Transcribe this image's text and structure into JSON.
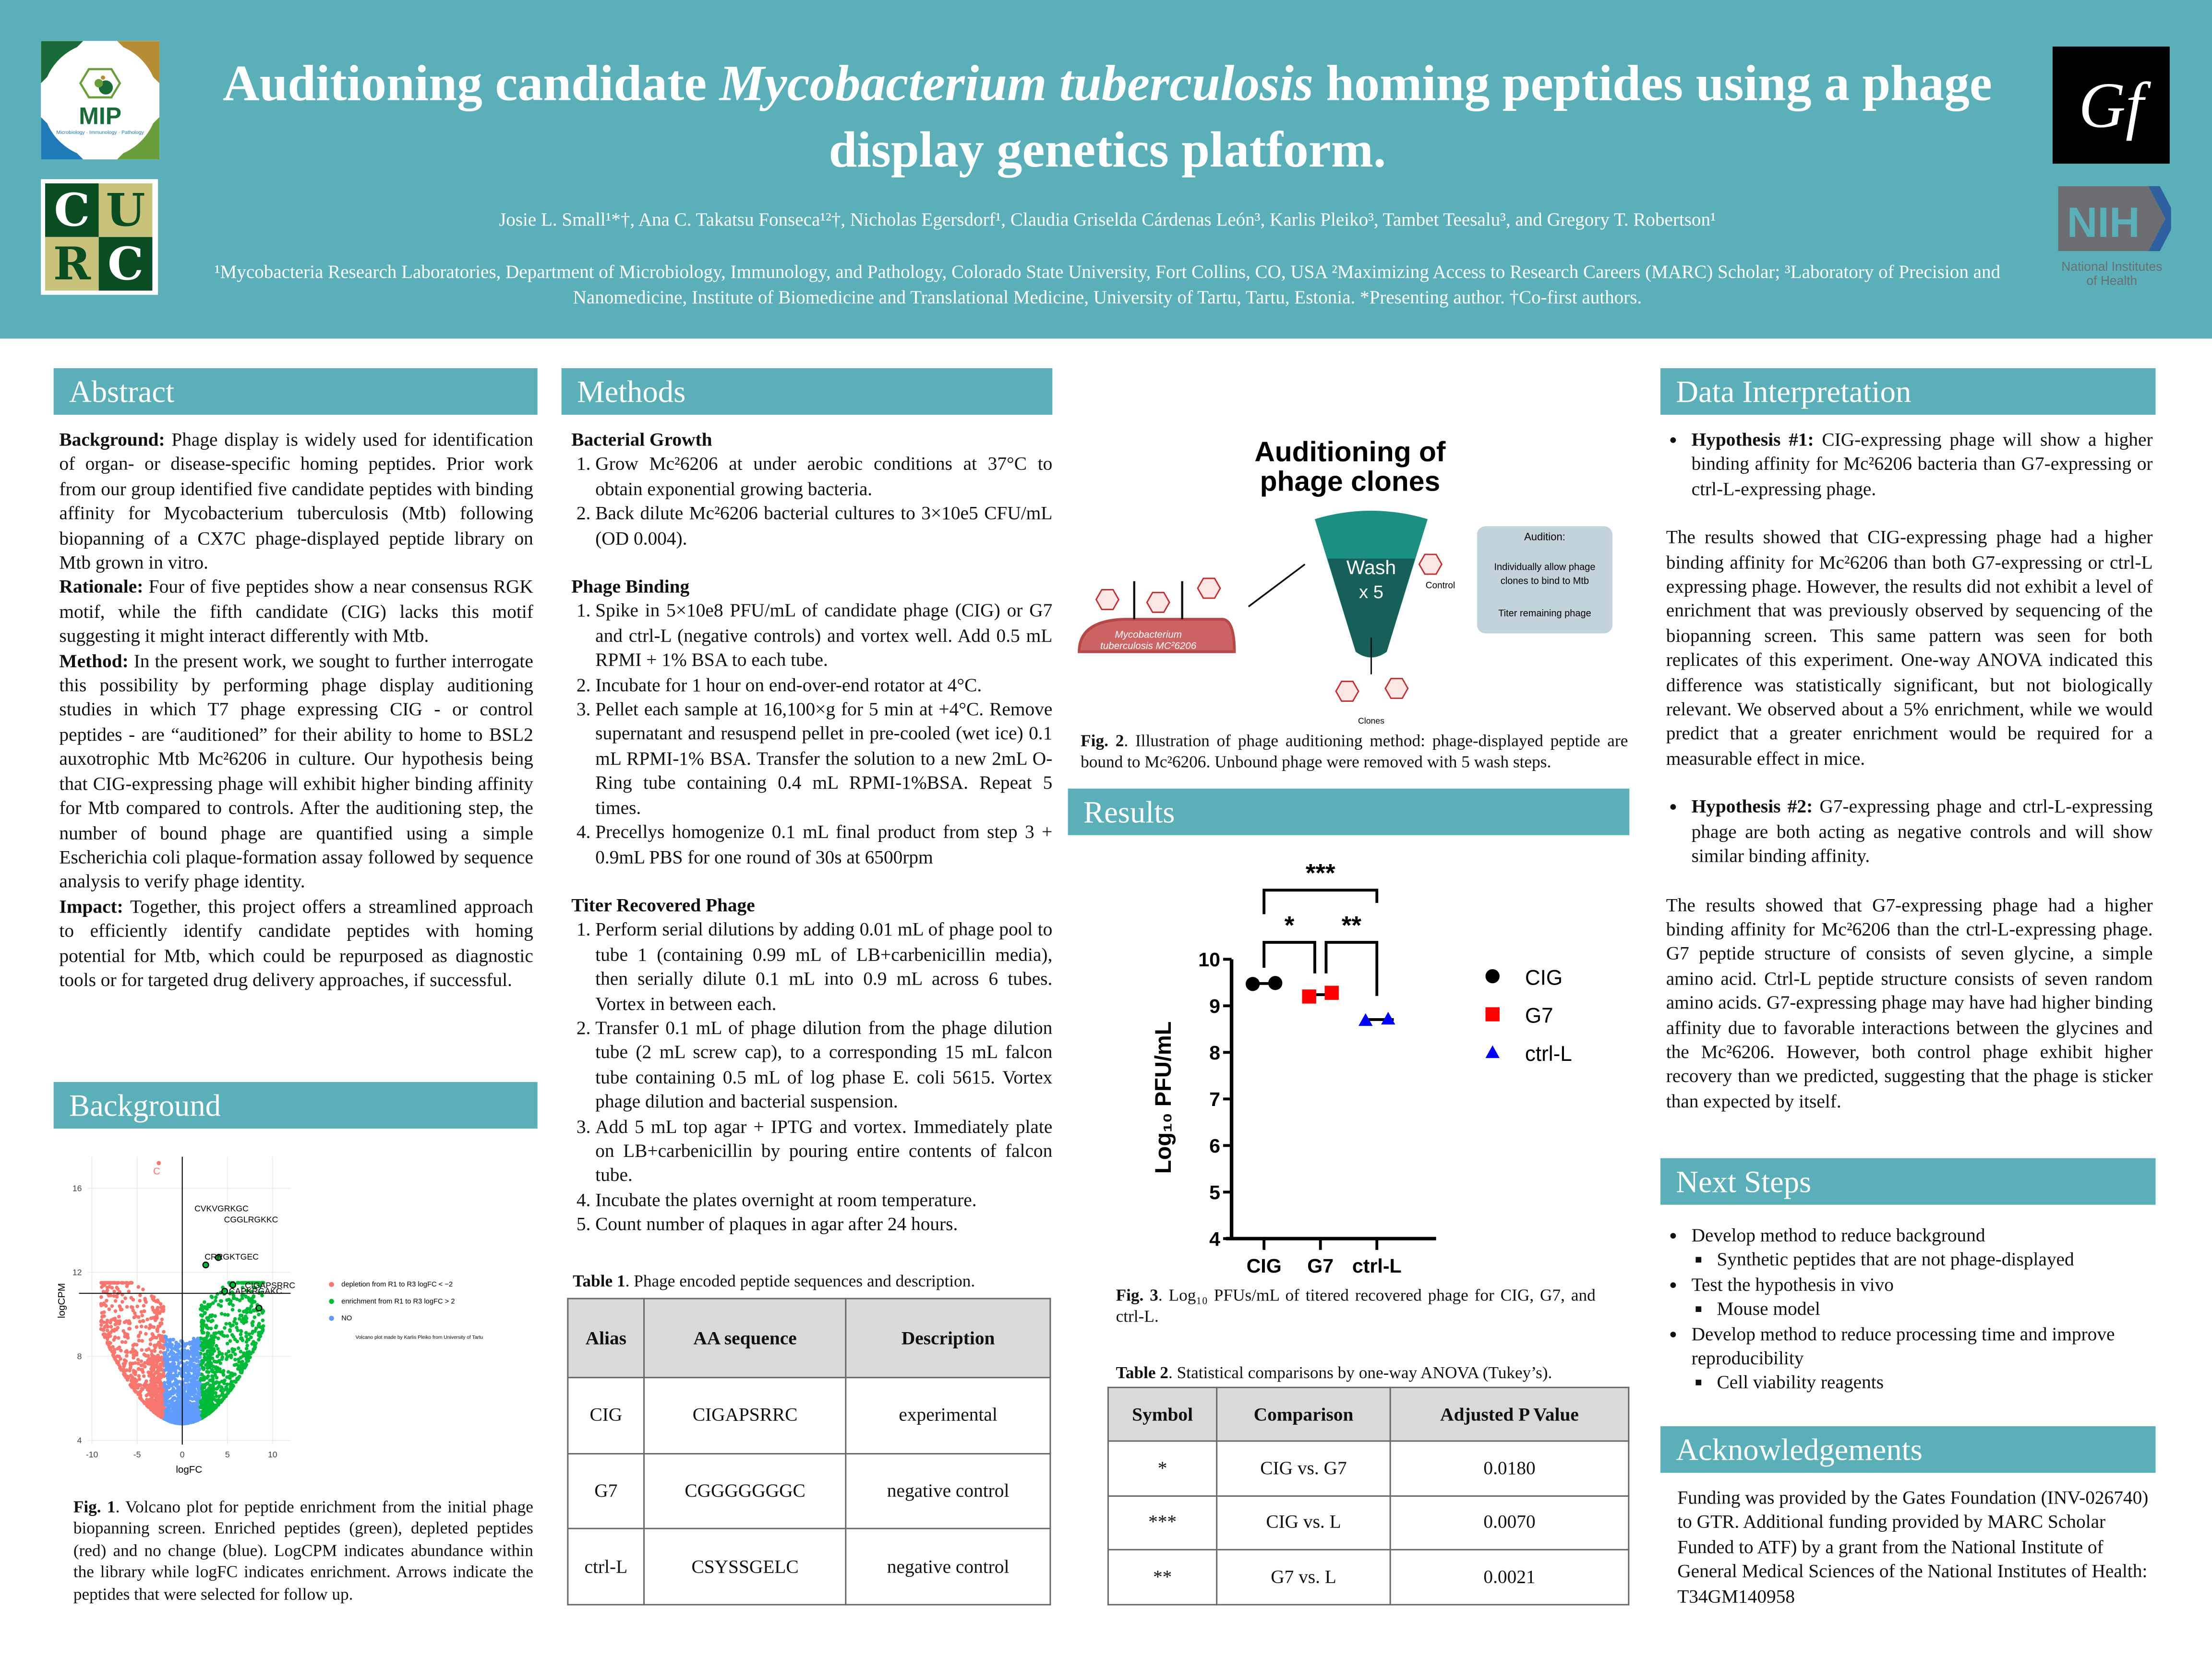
{
  "header": {
    "title_part1": "Auditioning candidate ",
    "title_italic": "Mycobacterium tuberculosis",
    "title_part2": " homing peptides using a phage display genetics platform.",
    "authors": "Josie L. Small¹*†, Ana C. Takatsu Fonseca¹²†, Nicholas Egersdorf¹, Claudia Griselda Cárdenas León³, Karlis Pleiko³, Tambet Teesalu³, and Gregory T. Robertson¹",
    "affiliations": "¹Mycobacteria Research Laboratories, Department of Microbiology, Immunology, and Pathology, Colorado State University, Fort Collins, CO, USA ²Maximizing Access to Research Careers (MARC) Scholar; ³Laboratory of Precision and Nanomedicine, Institute of Biomedicine and Translational Medicine, University of Tartu, Tartu, Estonia. *Presenting author. †Co-first authors.",
    "logos": {
      "mip": {
        "text": "MIP",
        "sub": "Microbiology · Immunology · Pathology"
      },
      "curc": [
        "C",
        "U",
        "R",
        "C"
      ],
      "gf": "Gf",
      "nih": {
        "text": "NIH",
        "sub1": "National Institutes",
        "sub2": "of Health"
      }
    }
  },
  "colors": {
    "header": "#5aafb8",
    "cig": "#000000",
    "g7": "#ff0000",
    "ctrl": "#0000ff",
    "depletion": "#f8766d",
    "enrichment": "#00ba38",
    "no": "#619cff"
  },
  "abstract": {
    "heading": "Abstract",
    "paragraphs": [
      {
        "lead": "Background:",
        "text": " Phage display is widely used for identification of organ- or disease-specific homing peptides. Prior work from our group identified five candidate peptides with binding affinity for Mycobacterium tuberculosis (Mtb) following biopanning of a CX7C phage-displayed peptide library on Mtb grown in vitro."
      },
      {
        "lead": "Rationale:",
        "text": " Four of five peptides show a near consensus RGK motif, while the fifth candidate (CIG) lacks this motif suggesting it might interact differently with Mtb."
      },
      {
        "lead": "Method:",
        "text": " In the present work, we sought to further interrogate this possibility by performing phage display auditioning studies in which T7 phage expressing CIG - or control peptides - are “auditioned” for their ability to home to BSL2 auxotrophic Mtb Mc²6206 in culture. Our hypothesis being that CIG-expressing phage will exhibit higher binding affinity for Mtb compared to controls. After the auditioning step, the number of bound phage are quantified using a simple Escherichia coli plaque-formation assay followed by sequence analysis to verify phage identity."
      },
      {
        "lead": "Impact:",
        "text": " Together, this project offers a streamlined approach to efficiently identify candidate peptides with homing potential for Mtb, which could be repurposed as diagnostic tools or for targeted drug delivery approaches, if successful."
      }
    ]
  },
  "background": {
    "heading": "Background",
    "caption_label": "Fig. 1",
    "caption": ". Volcano plot for peptide enrichment from the initial phage biopanning screen. Enriched peptides (green), depleted peptides (red) and no change (blue). LogCPM indicates abundance within the library while logFC indicates enrichment. Arrows indicate the peptides that were selected for follow up."
  },
  "chart_data": [
    {
      "type": "scatter",
      "xlabel": "logFC",
      "ylabel": "logCPM",
      "xticks": [
        -10,
        -5,
        0,
        5,
        10
      ],
      "yticks": [
        4,
        8,
        12,
        16
      ],
      "xlim": [
        -10.5,
        12
      ],
      "ylim": [
        3.8,
        17.5
      ],
      "grid": true,
      "legend_position": "right",
      "legend": [
        "depletion from R1 to R3 logFC < −2",
        "enrichment from R1 to R3 logFC > 2",
        "NO"
      ],
      "thresholds": {
        "vertical_x": 0,
        "horizontal_y": 11.0
      },
      "highlighted": [
        {
          "label": "CVKVGRKGC",
          "x": 2.6,
          "y": 12.35
        },
        {
          "label": "CGGLRGKKC",
          "x": 4.0,
          "y": 12.7
        },
        {
          "label": "CRRGKTGEC",
          "x": 5.6,
          "y": 11.4
        },
        {
          "label": "CAPKRGAKC",
          "x": 4.7,
          "y": 11.1
        },
        {
          "label": "CIGAPSRRC",
          "x": 8.5,
          "y": 10.3
        }
      ],
      "top_point": {
        "label": "C",
        "x": -2.6,
        "y": 17.2
      },
      "note": "Volcano plot made by Karlis Pleiko from University of Tartu"
    },
    {
      "type": "scatter",
      "ylabel": "Log₁₀ PFU/mL",
      "categories": [
        "CIG",
        "G7",
        "ctrl-L"
      ],
      "ylim": [
        4,
        10
      ],
      "yticks": [
        4,
        5,
        6,
        7,
        8,
        9,
        10
      ],
      "legend_position": "right",
      "series": [
        {
          "name": "CIG",
          "values": [
            9.47,
            9.49
          ],
          "marker": "circle",
          "color": "#000000"
        },
        {
          "name": "G7",
          "values": [
            9.2,
            9.28
          ],
          "marker": "square",
          "color": "#ff0000"
        },
        {
          "name": "ctrl-L",
          "values": [
            8.69,
            8.72
          ],
          "marker": "triangle",
          "color": "#0000ff"
        }
      ],
      "significance": [
        {
          "pair": [
            "CIG",
            "G7"
          ],
          "label": "*"
        },
        {
          "pair": [
            "G7",
            "ctrl-L"
          ],
          "label": "**"
        },
        {
          "pair": [
            "CIG",
            "ctrl-L"
          ],
          "label": "***"
        }
      ]
    }
  ],
  "methods": {
    "heading": "Methods",
    "sections": [
      {
        "title": "Bacterial Growth",
        "items": [
          "Grow Mc²6206 at under aerobic conditions at 37°C to obtain exponential growing bacteria.",
          "Back dilute Mc²6206 bacterial cultures to 3×10e5 CFU/mL (OD 0.004)."
        ]
      },
      {
        "title": "Phage Binding",
        "items": [
          "Spike in 5×10e8 PFU/mL of candidate phage (CIG) or G7 and ctrl-L (negative controls) and vortex well. Add 0.5 mL RPMI + 1% BSA to each tube.",
          "Incubate for 1 hour on end-over-end rotator at 4°C.",
          "Pellet each sample at 16,100×g for 5 min at +4°C. Remove supernatant and resuspend pellet in pre-cooled (wet ice) 0.1 mL RPMI-1% BSA. Transfer the solution to a new 2mL O-Ring tube containing 0.4 mL RPMI-1%BSA. Repeat 5 times.",
          "Precellys homogenize 0.1 mL final product from step 3 + 0.9mL PBS for one round of 30s at 6500rpm"
        ]
      },
      {
        "title": "Titer Recovered Phage",
        "items": [
          "Perform serial dilutions by adding 0.01 mL of phage pool to tube 1 (containing 0.99 mL of LB+carbenicillin media), then serially dilute 0.1 mL into 0.9 mL across 6 tubes. Vortex in between each.",
          "Transfer 0.1 mL of phage dilution from the phage dilution tube (2 mL screw cap), to a  corresponding 15 mL falcon tube containing 0.5 mL of log phase E. coli 5615. Vortex phage dilution and bacterial suspension.",
          "Add 5 mL top agar + IPTG and vortex. Immediately plate on LB+carbenicillin by pouring entire contents of falcon tube.",
          "Incubate the plates overnight at room temperature.",
          "Count number of plaques in agar after 24 hours."
        ]
      }
    ],
    "table1": {
      "caption_label": "Table 1",
      "caption": ".  Phage encoded peptide sequences and description.",
      "headers": [
        "Alias",
        "AA sequence",
        "Description"
      ],
      "rows": [
        [
          "CIG",
          "CIGAPSRRC",
          "experimental"
        ],
        [
          "G7",
          "CGGGGGGGC",
          "negative control"
        ],
        [
          "ctrl-L",
          "CSYSSGELC",
          "negative control"
        ]
      ]
    }
  },
  "figure2": {
    "title_line1": "Auditioning of",
    "title_line2": "phage clones",
    "bacterium_line1": "Mycobacterium",
    "bacterium_line2": "tuberculosis MC²6206",
    "wash": "Wash",
    "times": "x 5",
    "control": "Control",
    "clones": "Clones",
    "box_title": "Audition:",
    "box_line1": "Individually allow phage",
    "box_line2": "clones to bind to Mtb",
    "box_line3": "Titer remaining phage",
    "caption_label": "Fig. 2",
    "caption": ".  Illustration of phage auditioning method: phage-displayed peptide are bound to Mc²6206. Unbound phage were removed with 5 wash steps."
  },
  "results": {
    "heading": "Results",
    "caption_label": "Fig. 3",
    "caption": ".  Log₁₀ PFUs/mL of titered recovered phage for CIG, G7, and ctrl-L.",
    "table2": {
      "caption_label": "Table 2",
      "caption": ".  Statistical comparisons by one-way ANOVA (Tukey’s).",
      "headers": [
        "Symbol",
        "Comparison",
        "Adjusted P Value"
      ],
      "rows": [
        [
          "*",
          "CIG vs. G7",
          "0.0180"
        ],
        [
          "***",
          "CIG vs. L",
          "0.0070"
        ],
        [
          "**",
          "G7 vs. L",
          "0.0021"
        ]
      ]
    }
  },
  "interpretation": {
    "heading": "Data Interpretation",
    "h1_lead": "Hypothesis #1:",
    "h1_text": " CIG-expressing phage will show a higher binding affinity for Mc²6206 bacteria than G7-expressing or ctrl-L-expressing phage.",
    "p1": "The results showed that CIG-expressing phage had a higher binding affinity for Mc²6206 than both G7-expressing or ctrl-L expressing phage. However, the results did not exhibit a level of enrichment that was previously observed by sequencing of the biopanning screen. This same pattern was seen for both replicates of this experiment. One-way ANOVA indicated this difference was statistically significant, but not biologically relevant. We observed about a 5% enrichment, while we would predict that a greater enrichment would be required for a measurable effect in mice.",
    "h2_lead": "Hypothesis #2:",
    "h2_text": " G7-expressing phage and ctrl-L-expressing phage are both acting as negative controls and will show similar binding affinity.",
    "p2": "The results showed that G7-expressing phage had a higher binding affinity for Mc²6206 than the ctrl-L-expressing phage. G7 peptide structure of consists of seven glycine, a simple amino acid. Ctrl-L peptide structure consists of seven random amino acids. G7-expressing phage may have had higher binding affinity due  to favorable interactions between the glycines and the Mc²6206. However, both control phage exhibit higher recovery than we predicted, suggesting that the phage is sticker than expected by itself."
  },
  "next_steps": {
    "heading": "Next Steps",
    "items": [
      {
        "text": "Develop method to reduce background",
        "sub": "Synthetic peptides that are not phage-displayed"
      },
      {
        "text": "Test the hypothesis in vivo",
        "sub": "Mouse model"
      },
      {
        "text": "Develop method to reduce processing time and improve reproducibility",
        "sub": "Cell viability reagents"
      }
    ]
  },
  "acknowledgements": {
    "heading": "Acknowledgements",
    "text": "Funding was provided by the Gates Foundation (INV-026740) to GTR. Additional funding provided by MARC Scholar Funded  to ATF) by a grant from the National Institute of General Medical Sciences of the National Institutes of Health: T34GM140958"
  }
}
